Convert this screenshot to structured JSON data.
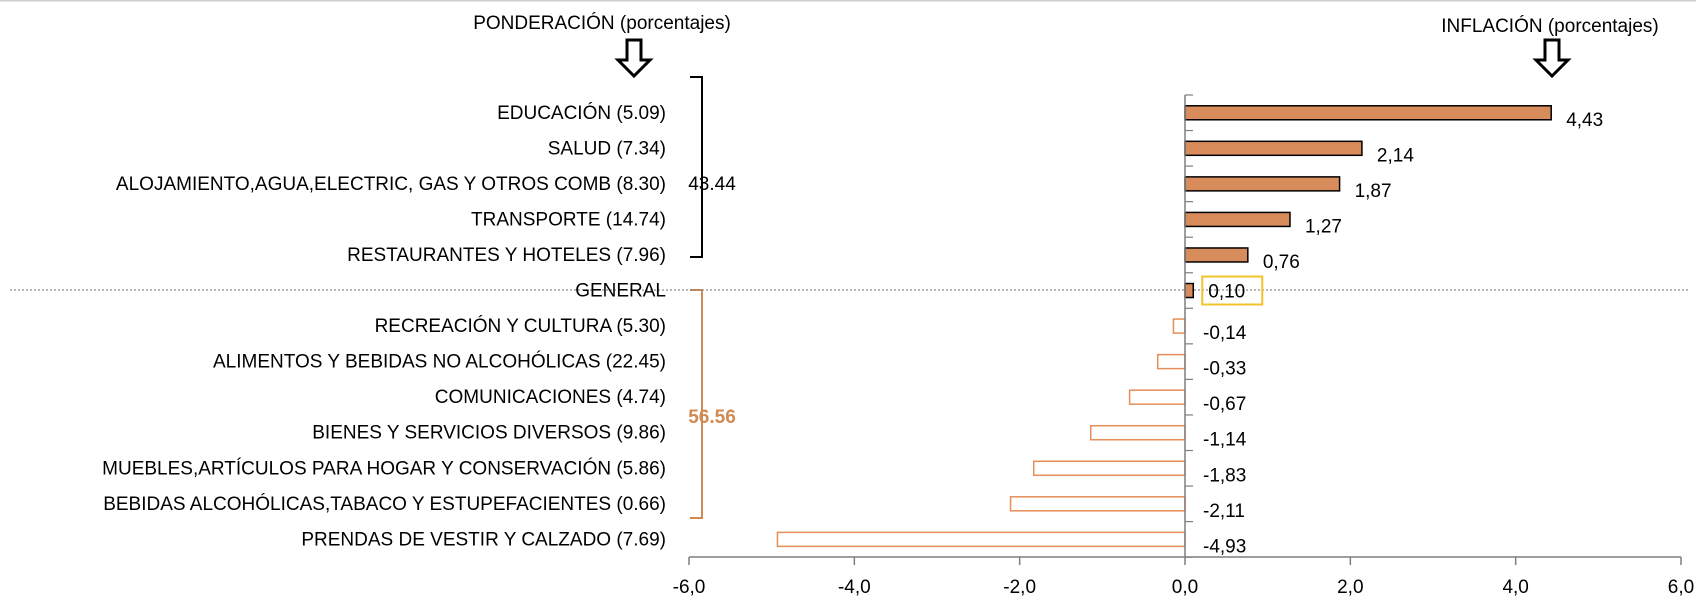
{
  "chart_data": {
    "type": "bar",
    "orientation": "horizontal",
    "header_left": "PONDERACIÓN (porcentajes)",
    "header_right": "INFLACIÓN (porcentajes)",
    "categories": [
      "EDUCACIÓN (5.09)",
      "SALUD (7.34)",
      "ALOJAMIENTO,AGUA,ELECTRIC, GAS Y OTROS COMB (8.30)",
      "TRANSPORTE (14.74)",
      "RESTAURANTES Y HOTELES (7.96)",
      "GENERAL",
      "RECREACIÓN Y CULTURA (5.30)",
      "ALIMENTOS Y BEBIDAS NO ALCOHÓLICAS (22.45)",
      "COMUNICACIONES (4.74)",
      "BIENES Y SERVICIOS DIVERSOS (9.86)",
      "MUEBLES,ARTÍCULOS PARA HOGAR Y CONSERVACIÓN (5.86)",
      "BEBIDAS ALCOHÓLICAS,TABACO Y ESTUPEFACIENTES (0.66)",
      "PRENDAS DE VESTIR Y CALZADO (7.69)"
    ],
    "values": [
      4.43,
      2.14,
      1.87,
      1.27,
      0.76,
      0.1,
      -0.14,
      -0.33,
      -0.67,
      -1.14,
      -1.83,
      -2.11,
      -4.93
    ],
    "value_labels": [
      "4,43",
      "2,14",
      "1,87",
      "1,27",
      "0,76",
      "0,10",
      "-0,14",
      "-0,33",
      "-0,67",
      "-1,14",
      "-1,83",
      "-2,11",
      "-4,93"
    ],
    "highlight_category": "GENERAL",
    "groups": [
      {
        "label": "43.44",
        "color": "#000000"
      },
      {
        "label": "56.56",
        "color": "#d08a52"
      }
    ],
    "xlim": [
      -6,
      6
    ],
    "xticks": [
      -6,
      -4,
      -2,
      0,
      2,
      4,
      6
    ],
    "xtick_labels": [
      "-6,0",
      "-4,0",
      "-2,0",
      "0,0",
      "2,0",
      "4,0",
      "6,0"
    ],
    "grid": false,
    "colors": {
      "positive_fill": "#d98c5b",
      "negative_stroke": "#e58e57",
      "accent_label": "#d08a52",
      "highlight_box": "#f2c42b"
    }
  }
}
